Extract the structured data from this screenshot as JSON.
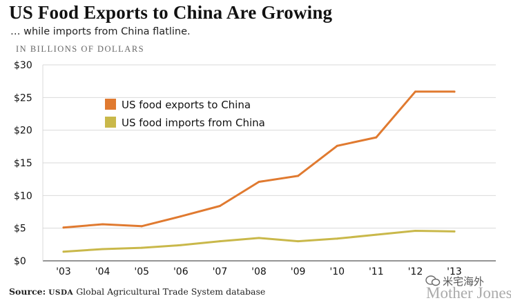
{
  "chart_data": {
    "type": "line",
    "title": "US Food Exports to China Are Growing",
    "subtitle": "… while imports from China flatline.",
    "ylabel": "IN BILLIONS OF DOLLARS",
    "categories": [
      "'03",
      "'04",
      "'05",
      "'06",
      "'07",
      "'08",
      "'09",
      "'10",
      "'11",
      "'12",
      "'13"
    ],
    "ylim": [
      0,
      30
    ],
    "yticks": [
      {
        "value": 0,
        "label": "$0"
      },
      {
        "value": 5,
        "label": "$5"
      },
      {
        "value": 10,
        "label": "$10"
      },
      {
        "value": 15,
        "label": "$15"
      },
      {
        "value": 20,
        "label": "$20"
      },
      {
        "value": 25,
        "label": "$25"
      },
      {
        "value": 30,
        "label": "$30"
      }
    ],
    "grid": true,
    "legend_position": "top-left",
    "series": [
      {
        "name": "US food exports to China",
        "color": "#e07a30",
        "values": [
          5.1,
          5.6,
          5.3,
          6.8,
          8.4,
          12.1,
          13.0,
          17.6,
          18.9,
          25.9,
          25.9
        ]
      },
      {
        "name": "US food imports from China",
        "color": "#c9b84a",
        "values": [
          1.4,
          1.8,
          2.0,
          2.4,
          3.0,
          3.5,
          3.0,
          3.4,
          4.0,
          4.6,
          4.5
        ]
      }
    ]
  },
  "source": {
    "prefix": "Source:",
    "agency": "USDA",
    "rest": "Global Agricultural Trade System database"
  },
  "brand": "Mother Jones",
  "watermark_label": "米宅海外"
}
